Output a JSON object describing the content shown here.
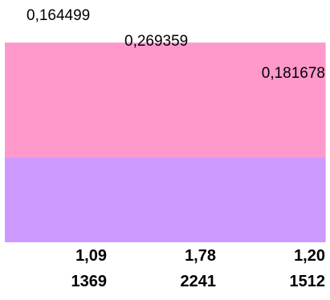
{
  "chart_data": {
    "type": "bar",
    "orientation": "vertical",
    "stacked": true,
    "categories": [
      [
        "1,09",
        "1369"
      ],
      [
        "1,78",
        "2241"
      ],
      [
        "1,20",
        "1512"
      ]
    ],
    "series": [
      {
        "values": [
          0.1,
          0.1,
          0.1
        ],
        "color": "#cc99ff"
      },
      {
        "values": [
          0.135,
          0.135,
          0.135
        ],
        "color": "#ff99cc"
      }
    ],
    "value_labels": [
      "0,164499",
      "0,269359",
      "0,181678"
    ],
    "ylim": [
      0,
      0.27
    ],
    "grid": false,
    "legend": false,
    "title": "",
    "xlabel": "",
    "ylabel": ""
  }
}
